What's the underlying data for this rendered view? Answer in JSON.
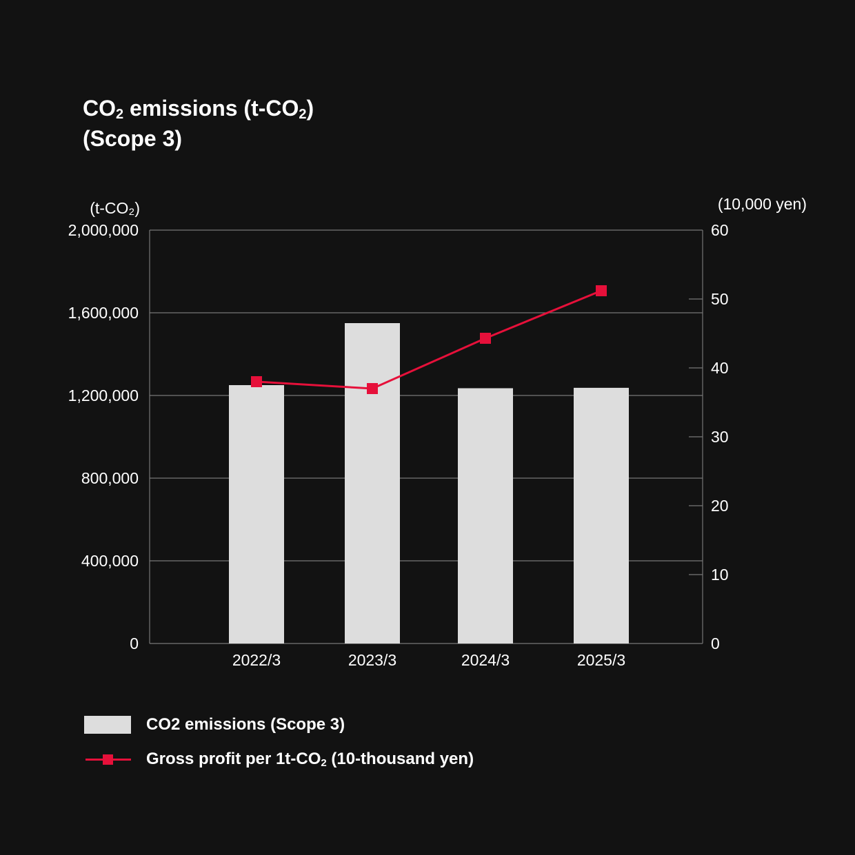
{
  "title": {
    "line1_pre": "CO",
    "line1_sub": "2",
    "line1_mid": " emissions (t-CO",
    "line1_sub2": "2",
    "line1_post": ")",
    "line2": "(Scope 3)"
  },
  "chart_data": {
    "type": "bar",
    "categories": [
      "2022/3",
      "2023/3",
      "2024/3",
      "2025/3"
    ],
    "series": [
      {
        "name": "CO2 emissions (Scope 3)",
        "type": "bar",
        "axis": "left",
        "values": [
          1250000,
          1550000,
          1235000,
          1237000
        ],
        "color": "#dddddd"
      },
      {
        "name": "Gross profit per 1t-CO₂ (10-thousand yen)",
        "type": "line",
        "axis": "right",
        "values": [
          38,
          37,
          44.3,
          51.2
        ],
        "color": "#e6103a"
      }
    ],
    "y_left": {
      "unit_label": "(t-CO₂)",
      "ticks": [
        "0",
        "400,000",
        "800,000",
        "1,200,000",
        "1,600,000",
        "2,000,000"
      ],
      "ylim": [
        0,
        2000000
      ]
    },
    "y_right": {
      "unit_label": "(10,000 yen)",
      "ticks": [
        "0",
        "10",
        "20",
        "30",
        "40",
        "50",
        "60"
      ],
      "ylim": [
        0,
        60
      ]
    },
    "grid": true,
    "legend_placement": "bottom-left"
  },
  "legend": {
    "bar_label": "CO2 emissions (Scope 3)",
    "line_label_pre": "Gross profit per 1t-CO",
    "line_label_sub": "2",
    "line_label_post": " (10-thousand yen)"
  },
  "colors": {
    "background": "#121212",
    "bar": "#dddddd",
    "line": "#e6103a",
    "axis": "#777777",
    "text": "#ffffff"
  }
}
